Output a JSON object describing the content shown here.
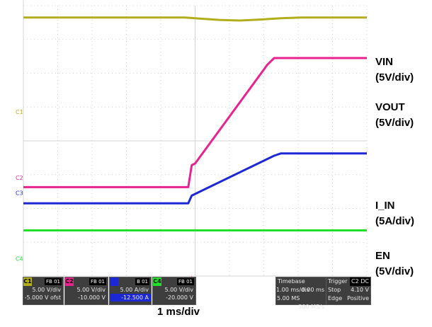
{
  "chart_data": {
    "type": "line",
    "time_scale_label": "1 ms/div",
    "x_unit": "ms",
    "xlim": [
      -4.9,
      5.1
    ],
    "series": [
      {
        "name": "VIN",
        "scale_label": "(5V/div)",
        "color": "#b3ad1c",
        "points": [
          [
            -4.9,
            3.65
          ],
          [
            -0.2,
            3.65
          ],
          [
            0.2,
            3.62
          ],
          [
            0.8,
            3.58
          ],
          [
            1.4,
            3.56
          ],
          [
            2.0,
            3.59
          ],
          [
            2.6,
            3.63
          ],
          [
            3.2,
            3.65
          ],
          [
            5.1,
            3.65
          ]
        ]
      },
      {
        "name": "VOUT",
        "scale_label": "(5V/div)",
        "color": "#e8228f",
        "points": [
          [
            -4.9,
            -1.37
          ],
          [
            -0.1,
            -1.37
          ],
          [
            0.0,
            -0.72
          ],
          [
            0.1,
            -0.67
          ],
          [
            2.2,
            2.25
          ],
          [
            2.4,
            2.45
          ],
          [
            5.1,
            2.45
          ]
        ]
      },
      {
        "name": "I_IN",
        "scale_label": "(5A/div)",
        "color": "#1b28d4",
        "points": [
          [
            -4.9,
            -1.85
          ],
          [
            -0.1,
            -1.85
          ],
          [
            0.0,
            -1.62
          ],
          [
            0.1,
            -1.57
          ],
          [
            2.4,
            -0.44
          ],
          [
            2.6,
            -0.37
          ],
          [
            5.1,
            -0.37
          ]
        ]
      },
      {
        "name": "EN",
        "scale_label": "(5V/div)",
        "color": "#22e02a",
        "points": [
          [
            -4.9,
            -2.65
          ],
          [
            5.1,
            -2.65
          ]
        ]
      }
    ],
    "grid": true,
    "legend": "right"
  },
  "channel_boxes": [
    {
      "id": "C1",
      "scale": "5.00 V/div",
      "offset": "-5.000 V ofst",
      "color": "#b3ad1c"
    },
    {
      "id": "C2",
      "scale": "5.00 V/div",
      "offset": "-10.000 V",
      "color": "#e8228f"
    },
    {
      "id": "C3",
      "scale": "5.00 A/div",
      "offset": "-12.500 A",
      "color": "#1b28d4"
    },
    {
      "id": "C4",
      "scale": "5.00 V/div",
      "offset": "-20.000 V",
      "color": "#22e02a"
    }
  ],
  "timebase": {
    "title": "Timebase",
    "delay": "0.00 ms",
    "per_div": "1.00 ms/div",
    "memory": "5.00 MS",
    "rate": "500 MS/s"
  },
  "trigger": {
    "title": "Trigger",
    "channel": "C2 DC",
    "mode": "Stop",
    "level": "4.10 V",
    "type": "Edge",
    "slope": "Positive"
  }
}
